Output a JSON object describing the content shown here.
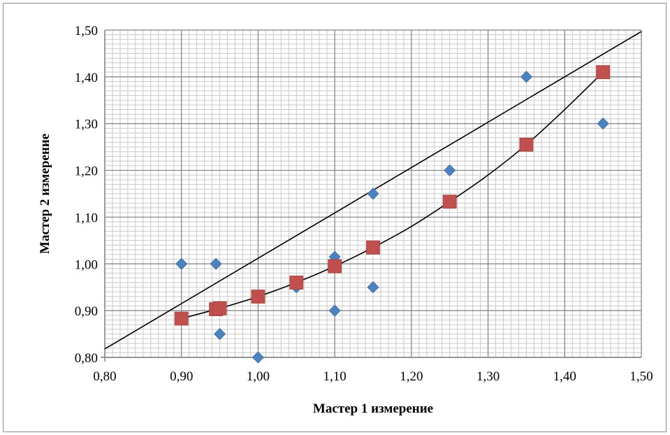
{
  "chart_data": {
    "type": "scatter",
    "title": "",
    "xlabel": "Мастер 1 измерение",
    "ylabel": "Мастер 2 измерение",
    "xlim": [
      0.8,
      1.5
    ],
    "ylim": [
      0.8,
      1.5
    ],
    "x_ticks": [
      "0,80",
      "0,90",
      "1,00",
      "1,10",
      "1,20",
      "1,30",
      "1,40",
      "1,50"
    ],
    "y_ticks": [
      "0,80",
      "0,90",
      "1,00",
      "1,10",
      "1,20",
      "1,30",
      "1,40",
      "1,50"
    ],
    "grid": true,
    "legend": "none",
    "series": [
      {
        "marker": "diamond",
        "color": "#4f81bd",
        "points": [
          [
            0.9,
            1.0
          ],
          [
            0.945,
            1.0
          ],
          [
            0.95,
            0.85
          ],
          [
            1.0,
            0.8
          ],
          [
            1.05,
            0.95
          ],
          [
            1.1,
            1.015
          ],
          [
            1.1,
            0.9
          ],
          [
            1.15,
            1.15
          ],
          [
            1.15,
            0.95
          ],
          [
            1.25,
            1.2
          ],
          [
            1.35,
            1.4
          ],
          [
            1.45,
            1.3
          ]
        ]
      },
      {
        "marker": "square",
        "color": "#c0504d",
        "points": [
          [
            0.9,
            0.883
          ],
          [
            0.945,
            0.903
          ],
          [
            0.95,
            0.905
          ],
          [
            1.0,
            0.93
          ],
          [
            1.05,
            0.96
          ],
          [
            1.1,
            0.995
          ],
          [
            1.15,
            1.035
          ],
          [
            1.25,
            1.133
          ],
          [
            1.35,
            1.255
          ],
          [
            1.45,
            1.41
          ]
        ]
      }
    ],
    "lines": [
      {
        "kind": "straight",
        "color": "#000000",
        "points": [
          [
            0.8,
            0.818
          ],
          [
            1.5,
            1.497
          ]
        ]
      },
      {
        "kind": "curve",
        "color": "#000000",
        "points": [
          [
            0.9,
            0.883
          ],
          [
            0.95,
            0.905
          ],
          [
            1.0,
            0.93
          ],
          [
            1.05,
            0.96
          ],
          [
            1.1,
            0.995
          ],
          [
            1.15,
            1.035
          ],
          [
            1.2,
            1.08
          ],
          [
            1.25,
            1.133
          ],
          [
            1.3,
            1.19
          ],
          [
            1.35,
            1.255
          ],
          [
            1.4,
            1.33
          ],
          [
            1.45,
            1.41
          ]
        ]
      }
    ]
  }
}
